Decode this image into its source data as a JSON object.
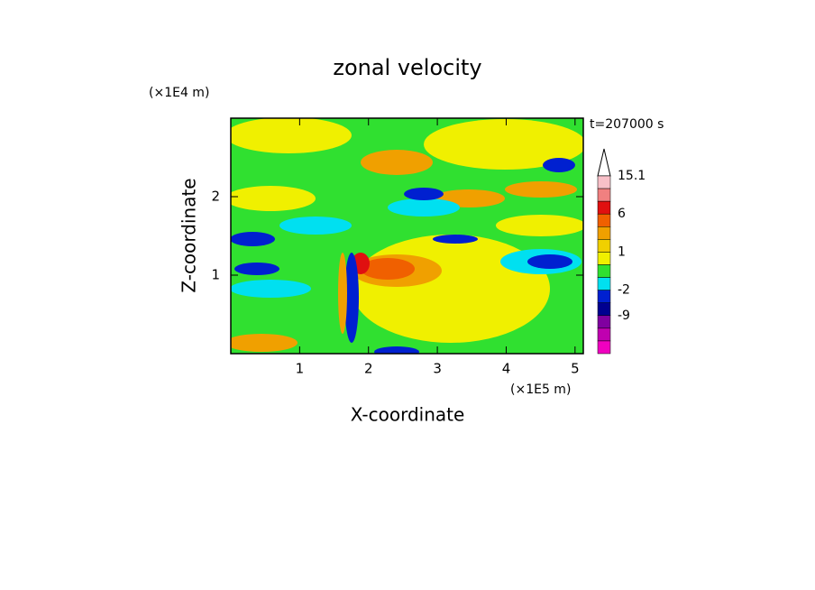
{
  "chart_data": {
    "type": "contour",
    "title": "zonal velocity",
    "time_label": "t=207000 s",
    "x_label": "X-coordinate",
    "x_unit": "(×1E5 m)",
    "y_label": "Z-coordinate",
    "y_unit": "(×1E4 m)",
    "xlim": [
      0,
      5.12
    ],
    "xticks": [
      1,
      2,
      3,
      4,
      5
    ],
    "ylim": [
      0,
      3
    ],
    "yticks": [
      1,
      2
    ],
    "colorbar": {
      "levels": [
        15.1,
        12,
        9,
        6,
        4,
        2,
        1,
        0,
        -1,
        -2,
        -5,
        -9,
        -12,
        -15
      ],
      "labels": [
        15.1,
        6,
        1,
        -2,
        -9
      ],
      "colors": [
        "#f8c0c8",
        "#f08080",
        "#e01010",
        "#f06000",
        "#f0a000",
        "#f0d000",
        "#f0f000",
        "#30e030",
        "#00e0f0",
        "#0020d0",
        "#000090",
        "#8000a0",
        "#c000b0"
      ],
      "over_color": "#ffffff",
      "under_color": "#f000c0"
    }
  }
}
